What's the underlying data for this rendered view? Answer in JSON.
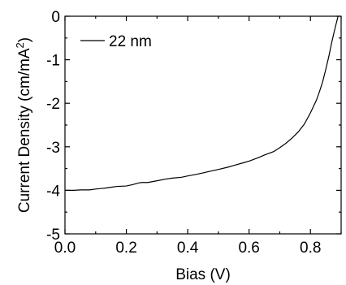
{
  "chart_data": {
    "type": "line",
    "title": "",
    "xlabel": "Bias (V)",
    "ylabel_main": "Current Density (cm/mA",
    "ylabel_sup": "2",
    "ylabel_close": ")",
    "xlim": [
      0.0,
      0.9
    ],
    "ylim": [
      -5,
      0
    ],
    "grid": false,
    "legend_position": "top-left",
    "x_ticks": [
      {
        "value": 0.0,
        "label": "0.0"
      },
      {
        "value": 0.2,
        "label": "0.2"
      },
      {
        "value": 0.4,
        "label": "0.4"
      },
      {
        "value": 0.6,
        "label": "0.6"
      },
      {
        "value": 0.8,
        "label": "0.8"
      }
    ],
    "y_ticks": [
      {
        "value": 0,
        "label": "0"
      },
      {
        "value": -1,
        "label": "-1"
      },
      {
        "value": -2,
        "label": "-2"
      },
      {
        "value": -3,
        "label": "-3"
      },
      {
        "value": -4,
        "label": "-4"
      },
      {
        "value": -5,
        "label": "-5"
      }
    ],
    "series": [
      {
        "name": "22 nm",
        "color": "#000000",
        "x": [
          0.0,
          0.03,
          0.05,
          0.08,
          0.1,
          0.13,
          0.15,
          0.17,
          0.2,
          0.22,
          0.24,
          0.25,
          0.27,
          0.3,
          0.33,
          0.35,
          0.38,
          0.4,
          0.43,
          0.45,
          0.48,
          0.5,
          0.53,
          0.55,
          0.58,
          0.6,
          0.63,
          0.65,
          0.68,
          0.7,
          0.72,
          0.74,
          0.76,
          0.78,
          0.8,
          0.82,
          0.83,
          0.84,
          0.85,
          0.86,
          0.87,
          0.88,
          0.89
        ],
        "y": [
          -4.0,
          -4.0,
          -3.99,
          -3.99,
          -3.97,
          -3.95,
          -3.93,
          -3.91,
          -3.9,
          -3.87,
          -3.83,
          -3.82,
          -3.82,
          -3.78,
          -3.74,
          -3.72,
          -3.7,
          -3.67,
          -3.63,
          -3.6,
          -3.55,
          -3.52,
          -3.47,
          -3.43,
          -3.37,
          -3.33,
          -3.25,
          -3.19,
          -3.11,
          -3.02,
          -2.92,
          -2.8,
          -2.66,
          -2.48,
          -2.22,
          -1.92,
          -1.72,
          -1.5,
          -1.22,
          -0.92,
          -0.58,
          -0.28,
          0.0
        ]
      }
    ]
  }
}
